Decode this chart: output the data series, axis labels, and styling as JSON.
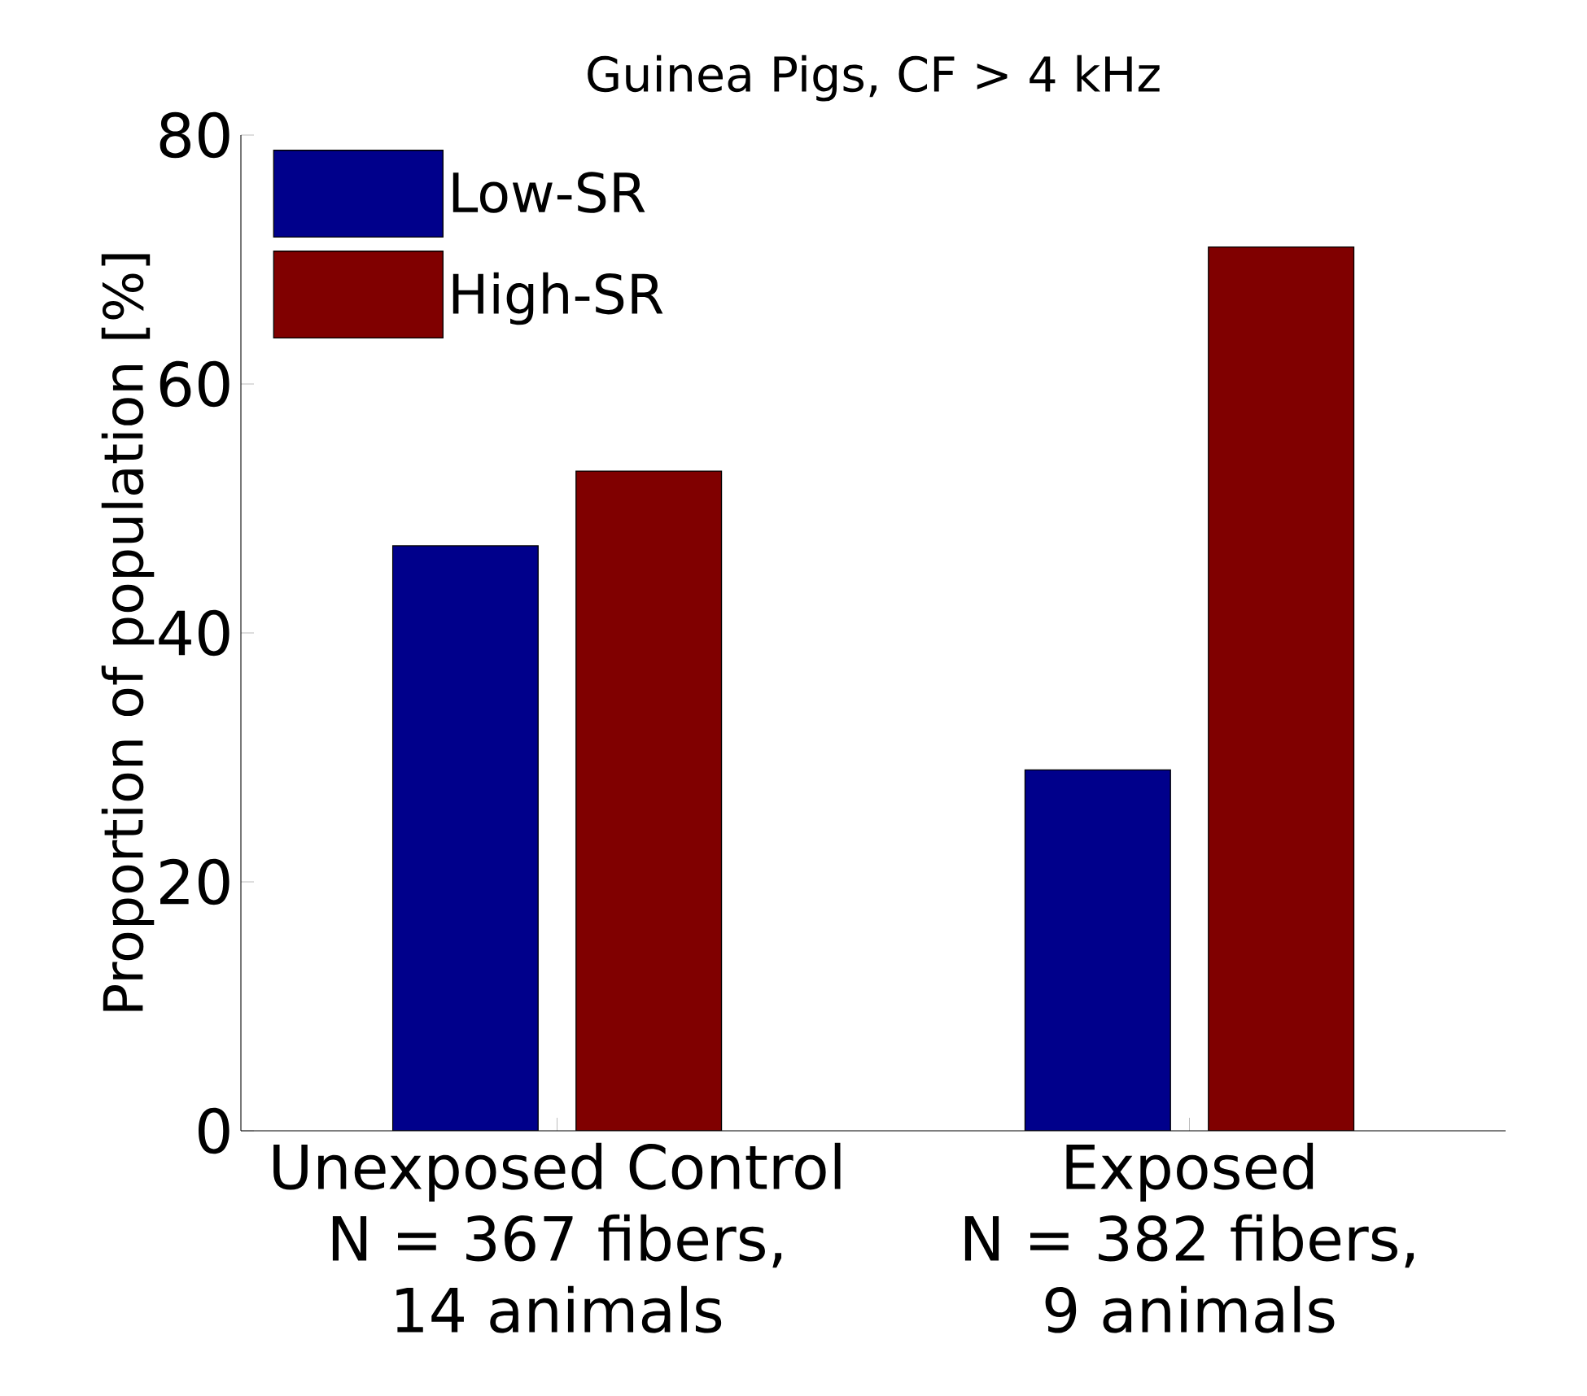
{
  "chart_data": {
    "type": "bar",
    "title": "Guinea Pigs, CF > 4 kHz",
    "ylabel": "Proportion of population [%]",
    "categories": [
      "Unexposed Control\nN = 367 fibers,\n14 animals",
      "Exposed\nN = 382 fibers,\n9 animals"
    ],
    "series": [
      {
        "name": "Low-SR",
        "color": "#00008b",
        "values": [
          47,
          29
        ]
      },
      {
        "name": "High-SR",
        "color": "#800000",
        "values": [
          53,
          71
        ]
      }
    ],
    "ylim": [
      0,
      80
    ],
    "yticks": [
      0,
      20,
      40,
      60,
      80
    ],
    "legend": "top left"
  }
}
